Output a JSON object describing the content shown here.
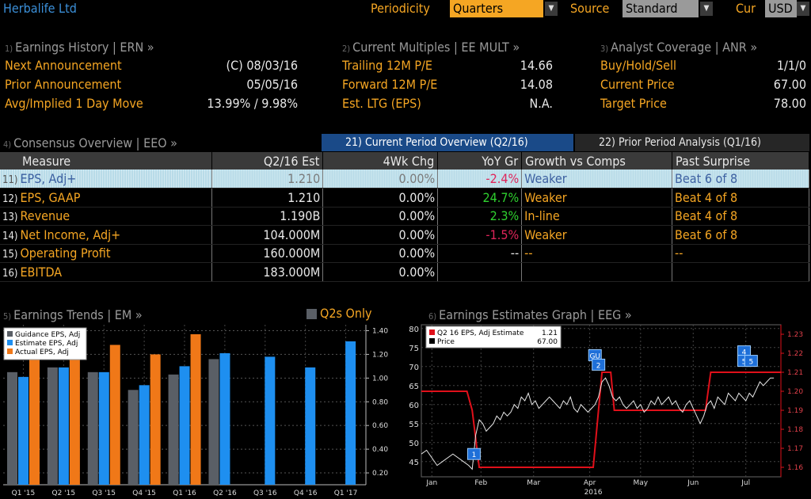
{
  "header": {
    "title": "Herbalife Ltd",
    "periodicity_label": "Periodicity",
    "periodicity_value": "Quarters",
    "source_label": "Source",
    "source_value": "Standard",
    "cur_label": "Cur",
    "cur_value": "USD"
  },
  "earnings_history": {
    "num": "1)",
    "title": "Earnings History | ERN »",
    "rows": [
      {
        "label": "Next Announcement",
        "value": "(C)  08/03/16"
      },
      {
        "label": "Prior Announcement",
        "value": "05/05/16"
      },
      {
        "label": "Avg/Implied 1 Day Move",
        "value": "13.99% / 9.98%"
      }
    ]
  },
  "current_multiples": {
    "num": "2)",
    "title": "Current Multiples | EE MULT »",
    "rows": [
      {
        "label": "Trailing 12M P/E",
        "value": "14.66"
      },
      {
        "label": "Forward 12M P/E",
        "value": "14.08"
      },
      {
        "label": "Est. LTG (EPS)",
        "value": "N.A."
      }
    ]
  },
  "analyst_coverage": {
    "num": "3)",
    "title": "Analyst Coverage | ANR »",
    "rows": [
      {
        "label": "Buy/Hold/Sell",
        "value": "1/1/0"
      },
      {
        "label": "Current Price",
        "value": "67.00"
      },
      {
        "label": "Target Price",
        "value": "78.00"
      }
    ]
  },
  "consensus": {
    "num": "4)",
    "title": "Consensus Overview | EEO »",
    "tab_current": "21) Current Period Overview (Q2/16)",
    "tab_prior": "22) Prior Period Analysis (Q1/16)",
    "columns": [
      "Measure",
      "Q2/16 Est",
      "4Wk Chg",
      "YoY Gr",
      "Growth vs Comps",
      "Past Surprise"
    ],
    "rows": [
      {
        "idx": "11)",
        "measure": "EPS, Adj+",
        "est": "1.210",
        "chg": "0.00%",
        "yoy": "-2.4%",
        "yoy_color": "#e0255a",
        "growth": "Weaker",
        "surprise": "Beat 6 of 8"
      },
      {
        "idx": "12)",
        "measure": "EPS, GAAP",
        "est": "1.210",
        "chg": "0.00%",
        "yoy": "24.7%",
        "yoy_color": "#2fd12f",
        "growth": "Weaker",
        "surprise": "Beat 4 of 8"
      },
      {
        "idx": "13)",
        "measure": "Revenue",
        "est": "1.190B",
        "chg": "0.00%",
        "yoy": "2.3%",
        "yoy_color": "#2fd12f",
        "growth": "In-line",
        "surprise": "Beat 4 of 8"
      },
      {
        "idx": "14)",
        "measure": "Net Income, Adj+",
        "est": "104.000M",
        "chg": "0.00%",
        "yoy": "-1.5%",
        "yoy_color": "#e0255a",
        "growth": "Weaker",
        "surprise": "Beat 6 of 8"
      },
      {
        "idx": "15)",
        "measure": "Operating Profit",
        "est": "160.000M",
        "chg": "0.00%",
        "yoy": "--",
        "yoy_color": "#e8e8e8",
        "growth": "--",
        "surprise": "--"
      },
      {
        "idx": "16)",
        "measure": "EBITDA",
        "est": "183.000M",
        "chg": "0.00%",
        "yoy": "",
        "yoy_color": "#e8e8e8",
        "growth": "",
        "surprise": ""
      }
    ]
  },
  "earnings_trends": {
    "num": "5)",
    "title": "Earnings Trends | EM »",
    "q2s_only": "Q2s Only",
    "colors": {
      "guidance": "#5a5f66",
      "estimate": "#1e8ff0",
      "actual": "#f07818"
    }
  },
  "earnings_graph": {
    "num": "6)",
    "title": "Earnings Estimates Graph | EEG »",
    "colors": {
      "estimate": "#e0101a",
      "price": "#e8e8e8"
    }
  },
  "chart_data": [
    {
      "type": "bar",
      "categories": [
        "Q1 '15",
        "Q2 '15",
        "Q3 '15",
        "Q4 '15",
        "Q1 '16",
        "Q2 '16",
        "Q3 '16",
        "Q4 '16",
        "Q1 '17"
      ],
      "series": [
        {
          "name": "Guidance EPS, Adj",
          "values": [
            1.05,
            1.09,
            1.05,
            0.9,
            1.03,
            1.16,
            null,
            null,
            null
          ]
        },
        {
          "name": "Estimate EPS, Adj",
          "values": [
            1.01,
            1.09,
            1.05,
            0.94,
            1.1,
            1.21,
            1.18,
            1.09,
            1.31
          ]
        },
        {
          "name": "Actual EPS, Adj",
          "values": [
            1.24,
            1.25,
            1.28,
            1.2,
            1.37,
            null,
            null,
            null,
            null
          ]
        }
      ],
      "ylim": [
        0.1,
        1.45
      ],
      "yticks": [
        "0.20",
        "0.40",
        "0.60",
        "0.80",
        "1.00",
        "1.20",
        "1.40"
      ],
      "legend": "top-left"
    },
    {
      "type": "line",
      "legend_rows": [
        {
          "name": "Q2 16 EPS, Adj Estimate",
          "value": "1.21"
        },
        {
          "name": "Price",
          "value": "67.00"
        }
      ],
      "x_labels": [
        "Jan",
        "Feb",
        "Mar",
        "Apr",
        "May",
        "Jun",
        "Jul"
      ],
      "x_year": "2016",
      "left_yticks": [
        "45",
        "50",
        "55",
        "60",
        "65",
        "70",
        "75",
        "80"
      ],
      "right_yticks": [
        "1.16",
        "1.17",
        "1.18",
        "1.19",
        "1.20",
        "1.21",
        "1.22",
        "1.23"
      ],
      "left_ylim": [
        41,
        81
      ],
      "right_ylim": [
        1.155,
        1.235
      ],
      "x_domain_days": [
        0,
        205
      ],
      "estimate_steps": [
        {
          "x": 0,
          "y": 1.2
        },
        {
          "x": 26,
          "y": 1.2
        },
        {
          "x": 29,
          "y": 1.19
        },
        {
          "x": 33,
          "y": 1.16
        },
        {
          "x": 98,
          "y": 1.16
        },
        {
          "x": 100,
          "y": 1.18
        },
        {
          "x": 103,
          "y": 1.21
        },
        {
          "x": 108,
          "y": 1.21
        },
        {
          "x": 110,
          "y": 1.19
        },
        {
          "x": 162,
          "y": 1.19
        },
        {
          "x": 165,
          "y": 1.21
        },
        {
          "x": 205,
          "y": 1.21
        }
      ],
      "price": [
        [
          0,
          47
        ],
        [
          3,
          48
        ],
        [
          6,
          46
        ],
        [
          9,
          44
        ],
        [
          12,
          45
        ],
        [
          15,
          46
        ],
        [
          18,
          47
        ],
        [
          21,
          46
        ],
        [
          24,
          45
        ],
        [
          27,
          44
        ],
        [
          29,
          43
        ],
        [
          31,
          52
        ],
        [
          33,
          56
        ],
        [
          35,
          55
        ],
        [
          37,
          53
        ],
        [
          39,
          54
        ],
        [
          41,
          55
        ],
        [
          43,
          57
        ],
        [
          45,
          56
        ],
        [
          47,
          58
        ],
        [
          49,
          57
        ],
        [
          51,
          58
        ],
        [
          53,
          60
        ],
        [
          55,
          59
        ],
        [
          57,
          62
        ],
        [
          59,
          61
        ],
        [
          61,
          63
        ],
        [
          63,
          60
        ],
        [
          65,
          61
        ],
        [
          67,
          59
        ],
        [
          69,
          60
        ],
        [
          71,
          61
        ],
        [
          73,
          62
        ],
        [
          75,
          61
        ],
        [
          77,
          60
        ],
        [
          79,
          59
        ],
        [
          81,
          61
        ],
        [
          83,
          60
        ],
        [
          85,
          62
        ],
        [
          87,
          59
        ],
        [
          89,
          58
        ],
        [
          91,
          60
        ],
        [
          93,
          59
        ],
        [
          95,
          58
        ],
        [
          97,
          59
        ],
        [
          99,
          60
        ],
        [
          101,
          62
        ],
        [
          103,
          66
        ],
        [
          105,
          67
        ],
        [
          107,
          65
        ],
        [
          109,
          62
        ],
        [
          111,
          61
        ],
        [
          113,
          62
        ],
        [
          115,
          60
        ],
        [
          117,
          59
        ],
        [
          119,
          60
        ],
        [
          121,
          61
        ],
        [
          123,
          59
        ],
        [
          125,
          60
        ],
        [
          127,
          58
        ],
        [
          129,
          59
        ],
        [
          131,
          61
        ],
        [
          133,
          60
        ],
        [
          135,
          62
        ],
        [
          137,
          60
        ],
        [
          139,
          61
        ],
        [
          141,
          62
        ],
        [
          143,
          60
        ],
        [
          145,
          61
        ],
        [
          147,
          59
        ],
        [
          149,
          58
        ],
        [
          151,
          60
        ],
        [
          153,
          61
        ],
        [
          155,
          59
        ],
        [
          157,
          57
        ],
        [
          159,
          55
        ],
        [
          161,
          57
        ],
        [
          163,
          60
        ],
        [
          165,
          61
        ],
        [
          167,
          59
        ],
        [
          169,
          62
        ],
        [
          171,
          61
        ],
        [
          173,
          60
        ],
        [
          175,
          63
        ],
        [
          177,
          62
        ],
        [
          179,
          61
        ],
        [
          181,
          63
        ],
        [
          183,
          62
        ],
        [
          185,
          61
        ],
        [
          187,
          63
        ],
        [
          189,
          62
        ],
        [
          191,
          64
        ],
        [
          193,
          66
        ],
        [
          195,
          65
        ],
        [
          197,
          66
        ],
        [
          199,
          67
        ],
        [
          201,
          67
        ]
      ],
      "markers": [
        {
          "label": "1",
          "x": 30,
          "y": 47,
          "color": "#1e6fd8"
        },
        {
          "label": "GU",
          "x": 99,
          "y": 73,
          "color": "#1e6fd8"
        },
        {
          "label": "2",
          "x": 101,
          "y": 70.5,
          "color": "#1e6fd8"
        },
        {
          "label": "4",
          "x": 184,
          "y": 74,
          "color": "#1e6fd8"
        },
        {
          "label": "5",
          "x": 184,
          "y": 71.5,
          "color": "#1e6fd8"
        },
        {
          "label": "5",
          "x": 188,
          "y": 71.5,
          "color": "#1e6fd8"
        }
      ]
    }
  ]
}
